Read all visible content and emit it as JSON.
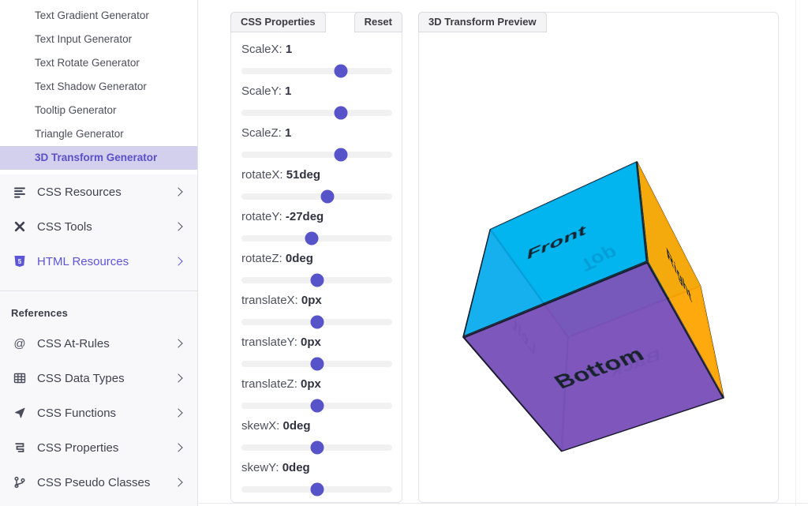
{
  "sidebar": {
    "submenu": [
      {
        "label": "Text Gradient Generator",
        "active": false
      },
      {
        "label": "Text Input Generator",
        "active": false
      },
      {
        "label": "Text Rotate Generator",
        "active": false
      },
      {
        "label": "Text Shadow Generator",
        "active": false
      },
      {
        "label": "Tooltip Generator",
        "active": false
      },
      {
        "label": "Triangle Generator",
        "active": false
      },
      {
        "label": "3D Transform Generator",
        "active": true
      }
    ],
    "sections": [
      {
        "label": "CSS Resources",
        "icon": "list-icon",
        "accent": false
      },
      {
        "label": "CSS Tools",
        "icon": "tools-icon",
        "accent": false
      },
      {
        "label": "HTML Resources",
        "icon": "html5-icon",
        "accent": true
      }
    ],
    "references_heading": "References",
    "references": [
      {
        "label": "CSS At-Rules",
        "icon": "at-icon"
      },
      {
        "label": "CSS Data Types",
        "icon": "table-icon"
      },
      {
        "label": "CSS Functions",
        "icon": "functions-icon"
      },
      {
        "label": "CSS Properties",
        "icon": "css-icon"
      },
      {
        "label": "CSS Pseudo Classes",
        "icon": "branch-icon"
      }
    ]
  },
  "properties_panel": {
    "title": "CSS Properties",
    "reset_label": "Reset",
    "sliders": [
      {
        "label": "ScaleX:",
        "value": "1",
        "percent": 66
      },
      {
        "label": "ScaleY:",
        "value": "1",
        "percent": 66
      },
      {
        "label": "ScaleZ:",
        "value": "1",
        "percent": 66
      },
      {
        "label": "rotateX:",
        "value": "51deg",
        "percent": 57
      },
      {
        "label": "rotateY:",
        "value": "-27deg",
        "percent": 46.6
      },
      {
        "label": "rotateZ:",
        "value": "0deg",
        "percent": 50
      },
      {
        "label": "translateX:",
        "value": "0px",
        "percent": 50
      },
      {
        "label": "translateY:",
        "value": "0px",
        "percent": 50
      },
      {
        "label": "translateZ:",
        "value": "0px",
        "percent": 50
      },
      {
        "label": "skewX:",
        "value": "0deg",
        "percent": 50
      },
      {
        "label": "skewY:",
        "value": "0deg",
        "percent": 50
      }
    ]
  },
  "preview_panel": {
    "title": "3D Transform Preview",
    "transform_css": "scaleX(1) scaleY(1) scaleZ(1) rotateX(51deg) rotateY(-27deg) rotateZ(0deg) translateX(0px) translateY(0px) translateZ(0px)",
    "cube_faces": [
      {
        "name": "front",
        "label": "Front",
        "color": "rgba(0,174,239,0.88)"
      },
      {
        "name": "back",
        "label": "Back",
        "color": "rgba(168,118,222,0.40)"
      },
      {
        "name": "left",
        "label": "Left",
        "color": "rgba(86,106,212,0.45)"
      },
      {
        "name": "right",
        "label": "Right",
        "color": "rgba(255,166,0,0.95)"
      },
      {
        "name": "top",
        "label": "Top",
        "color": "rgba(0,229,224,0.92)"
      },
      {
        "name": "bottom",
        "label": "Bottom",
        "color": "rgba(123,82,185,0.96)"
      }
    ]
  },
  "colors": {
    "accent": "#5b54ca",
    "active_item_bg": "#d3d0ed",
    "active_item_text": "#5a50c8",
    "slider_thumb": "#5753c8"
  }
}
